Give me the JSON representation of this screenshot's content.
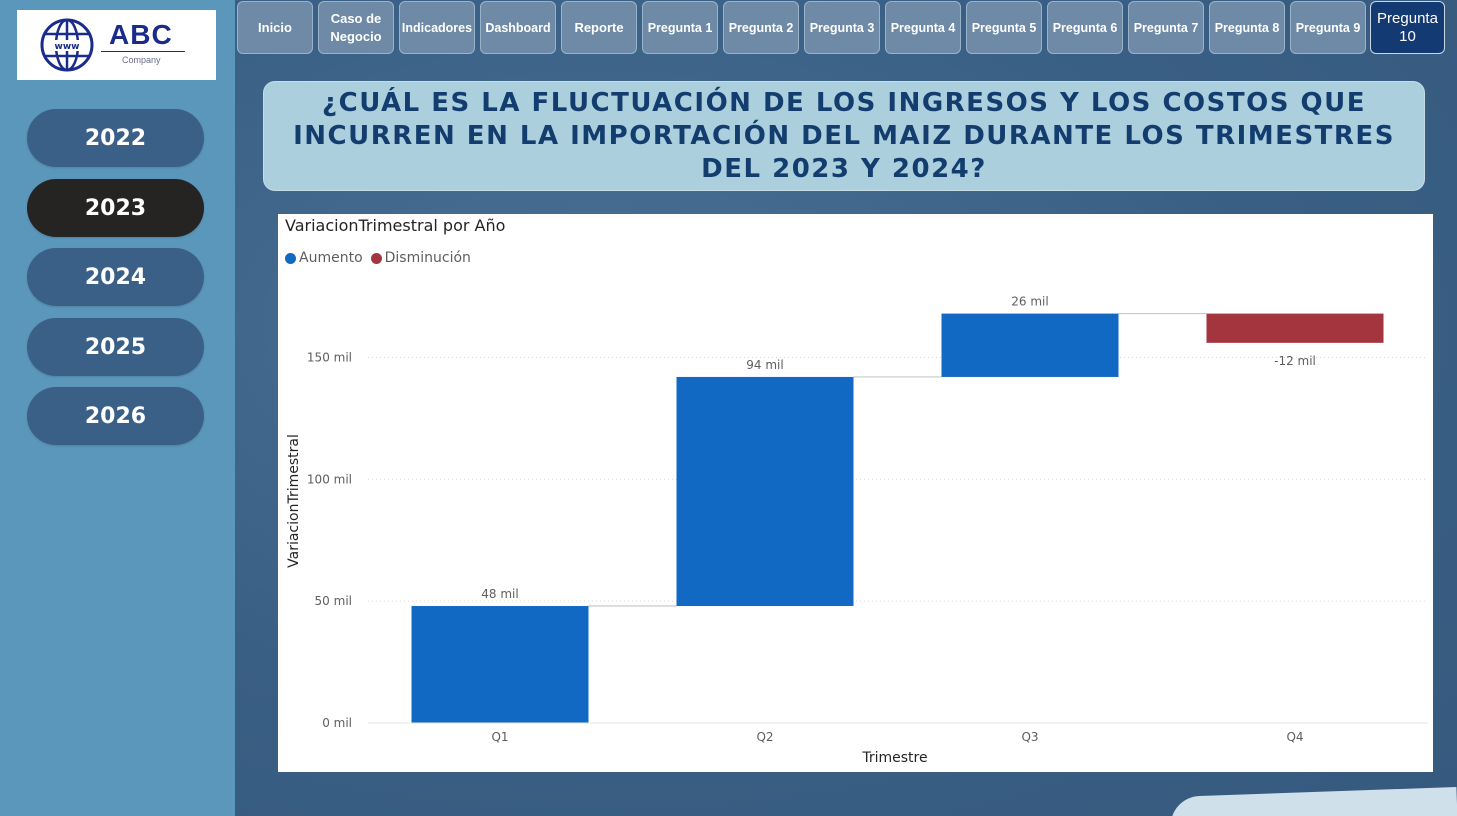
{
  "logo": {
    "name": "ABC",
    "subtitle": "Company",
    "icon": "globe-www-icon"
  },
  "sidebar": {
    "years": [
      {
        "label": "2022",
        "active": false
      },
      {
        "label": "2023",
        "active": true
      },
      {
        "label": "2024",
        "active": false
      },
      {
        "label": "2025",
        "active": false
      },
      {
        "label": "2026",
        "active": false
      }
    ]
  },
  "nav": {
    "tabs": [
      {
        "label": "Inicio",
        "active": false
      },
      {
        "label": "Caso de Negocio",
        "active": false
      },
      {
        "label": "Indicadores",
        "active": false
      },
      {
        "label": "Dashboard",
        "active": false
      },
      {
        "label": "Reporte",
        "active": false
      },
      {
        "label": "Pregunta 1",
        "active": false
      },
      {
        "label": "Pregunta 2",
        "active": false
      },
      {
        "label": "Pregunta 3",
        "active": false
      },
      {
        "label": "Pregunta 4",
        "active": false
      },
      {
        "label": "Pregunta 5",
        "active": false
      },
      {
        "label": "Pregunta 6",
        "active": false
      },
      {
        "label": "Pregunta 7",
        "active": false
      },
      {
        "label": "Pregunta 8",
        "active": false
      },
      {
        "label": "Pregunta 9",
        "active": false
      },
      {
        "label": "Pregunta 10",
        "active": true
      }
    ]
  },
  "page": {
    "question": "¿CUÁL ES LA FLUCTUACIÓN DE LOS INGRESOS Y LOS COSTOS QUE INCURREN EN LA IMPORTACIÓN DEL MAIZ DURANTE LOS TRIMESTRES DEL 2023 Y 2024?"
  },
  "colors": {
    "increase": "#1169c4",
    "decrease": "#a4343e",
    "connector": "#c8c8c8"
  },
  "chart_data": {
    "type": "waterfall",
    "title": "VariacionTrimestral por Año",
    "xlabel": "Trimestre",
    "ylabel": "VariacionTrimestral",
    "legend": [
      {
        "name": "Aumento",
        "color": "#1169c4"
      },
      {
        "name": "Disminución",
        "color": "#a4343e"
      }
    ],
    "legend_position": "top-left",
    "categories": [
      "Q1",
      "Q2",
      "Q3",
      "Q4"
    ],
    "values": [
      48,
      94,
      26,
      -12
    ],
    "data_labels": [
      "48 mil",
      "94 mil",
      "26 mil",
      "-12 mil"
    ],
    "y_ticks": [
      {
        "value": 0,
        "label": "0 mil"
      },
      {
        "value": 50,
        "label": "50 mil"
      },
      {
        "value": 100,
        "label": "100 mil"
      },
      {
        "value": 150,
        "label": "150 mil"
      }
    ],
    "ylim": [
      0,
      175
    ],
    "grid": true,
    "unit": "mil"
  }
}
